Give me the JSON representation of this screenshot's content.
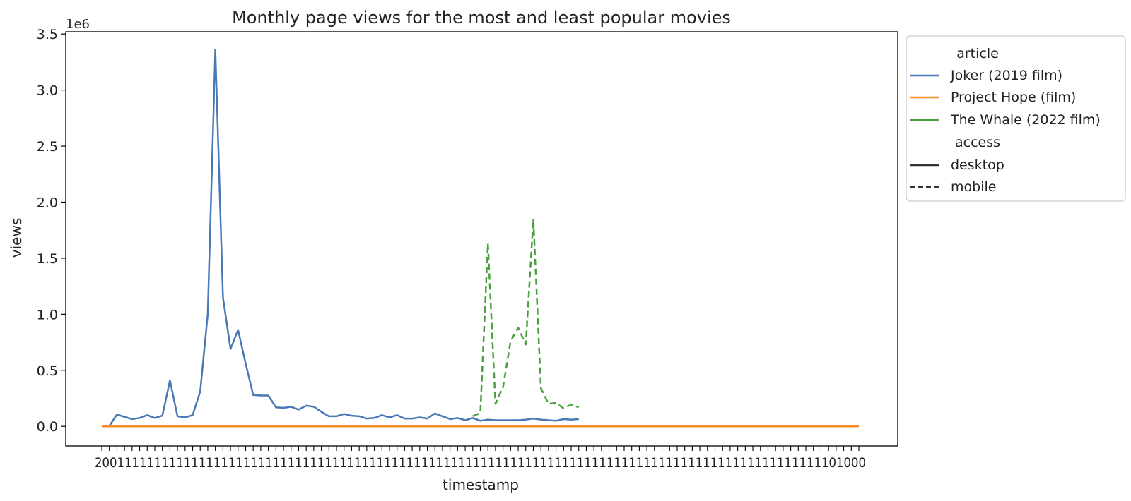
{
  "chart_data": {
    "type": "line",
    "title": "Monthly page views for the most and least popular movies",
    "xlabel": "timestamp",
    "ylabel": "views",
    "y_offset_label": "1e6",
    "ylim": [
      -175000,
      3520000
    ],
    "yticks": [
      0,
      500000,
      1000000,
      1500000,
      2000000,
      2500000,
      3000000,
      3500000
    ],
    "ytick_labels": [
      "0.0",
      "0.5",
      "1.0",
      "1.5",
      "2.0",
      "2.5",
      "3.0",
      "3.5"
    ],
    "x_tick_count": 100,
    "x_tick_labels_note": "overlapping timestamp labels, unreadable",
    "x_tick_labels_start": "2",
    "x_tick_labels_end": "01000",
    "grid": false,
    "legend_position": "outside upper-right",
    "legend": {
      "hue_title": "article",
      "style_title": "access",
      "articles": [
        {
          "name": "Joker (2019 film)",
          "color": "#4878b5"
        },
        {
          "name": "Project Hope (film)",
          "color": "#f28e2b"
        },
        {
          "name": "The Whale (2022 film)",
          "color": "#4aa03f"
        }
      ],
      "access": [
        {
          "name": "desktop",
          "dash": "solid"
        },
        {
          "name": "mobile",
          "dash": "dashed"
        }
      ]
    },
    "series": [
      {
        "name": "Joker (2019 film)",
        "access": "desktop",
        "color": "#4878b5",
        "x": [
          0,
          1,
          2,
          3,
          4,
          5,
          6,
          7,
          8,
          9,
          10,
          11,
          12,
          13,
          14,
          15,
          16,
          17,
          18,
          19,
          20,
          21,
          22,
          23,
          24,
          25,
          26,
          27,
          28,
          29,
          30,
          31,
          32,
          33,
          34,
          35,
          36,
          37,
          38,
          39,
          40,
          41,
          42,
          43,
          44,
          45,
          46,
          47,
          48,
          49,
          50,
          51,
          52,
          53,
          54,
          55,
          56,
          57,
          58,
          59,
          60,
          61,
          62,
          63
        ],
        "values": [
          0,
          5000,
          105000,
          85000,
          65000,
          75000,
          100000,
          75000,
          95000,
          410000,
          90000,
          80000,
          100000,
          310000,
          1000000,
          3360000,
          1150000,
          690000,
          860000,
          560000,
          280000,
          275000,
          275000,
          170000,
          165000,
          175000,
          150000,
          185000,
          175000,
          130000,
          90000,
          90000,
          110000,
          95000,
          90000,
          70000,
          75000,
          100000,
          80000,
          100000,
          70000,
          70000,
          80000,
          70000,
          115000,
          90000,
          65000,
          75000,
          55000,
          75000,
          50000,
          60000,
          55000,
          55000,
          55000,
          55000,
          60000,
          70000,
          60000,
          55000,
          50000,
          65000,
          60000,
          65000
        ]
      },
      {
        "name": "Project Hope (film)",
        "access": "desktop",
        "color": "#f28e2b",
        "x": [
          0,
          100
        ],
        "values": [
          0,
          0
        ]
      },
      {
        "name": "The Whale (2022 film)",
        "access": "mobile",
        "color": "#4aa03f",
        "x": [
          49,
          50,
          51,
          52,
          53,
          54,
          55,
          56,
          57,
          58,
          59,
          60,
          61,
          62,
          63
        ],
        "values": [
          90000,
          120000,
          1630000,
          200000,
          350000,
          760000,
          880000,
          730000,
          1850000,
          340000,
          200000,
          210000,
          160000,
          195000,
          170000
        ]
      }
    ]
  }
}
